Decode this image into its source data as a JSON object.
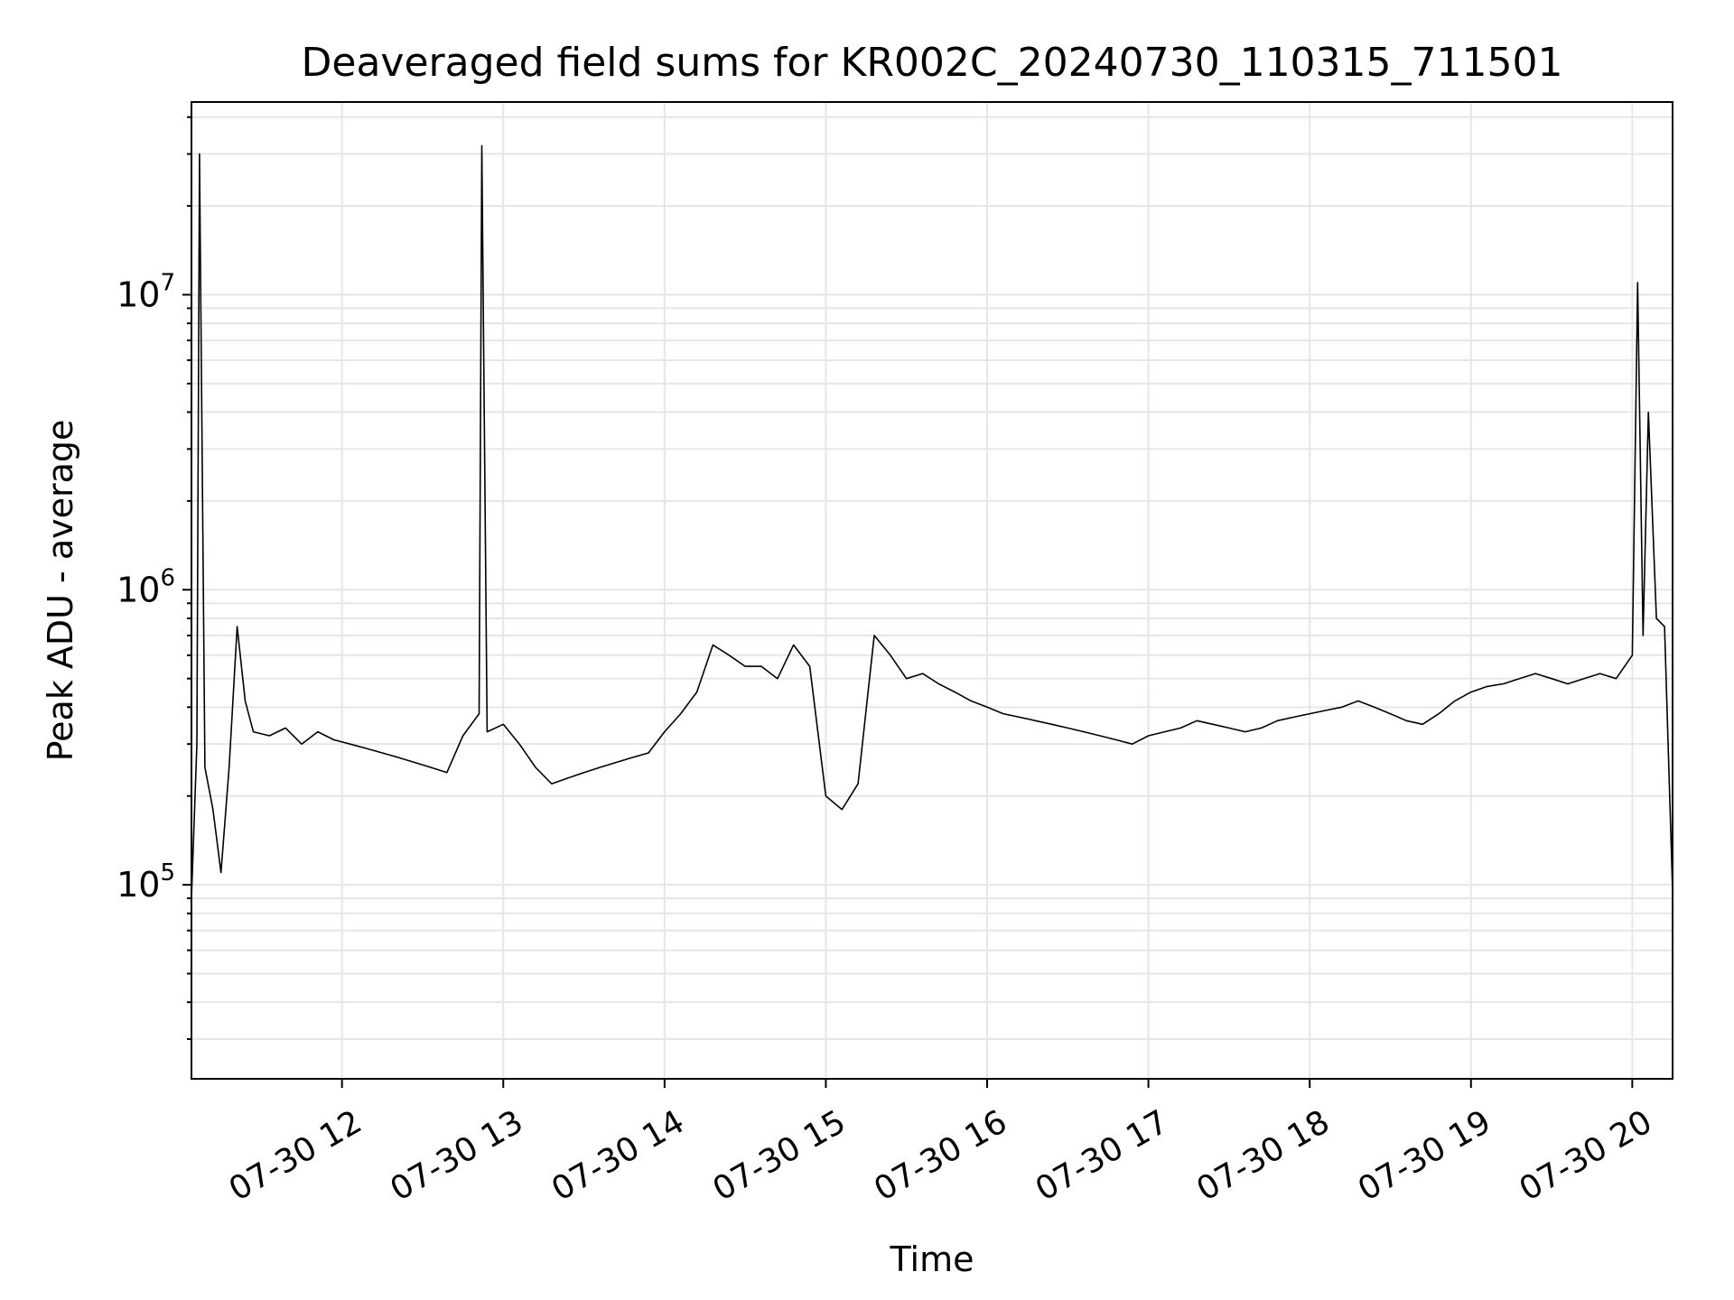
{
  "chart_data": {
    "type": "line",
    "title": "Deaveraged field sums for KR002C_20240730_110315_711501",
    "xlabel": "Time",
    "ylabel": "Peak ADU - average",
    "yscale": "log",
    "grid": true,
    "colors": {
      "line": "#000000",
      "grid": "#e6e6e6"
    },
    "xlim": [
      "07-30 11:04",
      "07-30 20:15"
    ],
    "ylim": [
      22000,
      45000000
    ],
    "x_ticks": [
      {
        "value": "07-30 12:00",
        "label": "07-30 12"
      },
      {
        "value": "07-30 13:00",
        "label": "07-30 13"
      },
      {
        "value": "07-30 14:00",
        "label": "07-30 14"
      },
      {
        "value": "07-30 15:00",
        "label": "07-30 15"
      },
      {
        "value": "07-30 16:00",
        "label": "07-30 16"
      },
      {
        "value": "07-30 17:00",
        "label": "07-30 17"
      },
      {
        "value": "07-30 18:00",
        "label": "07-30 18"
      },
      {
        "value": "07-30 19:00",
        "label": "07-30 19"
      },
      {
        "value": "07-30 20:00",
        "label": "07-30 20"
      }
    ],
    "y_ticks": [
      {
        "value": 100000,
        "base": "10",
        "exp": "5"
      },
      {
        "value": 1000000,
        "base": "10",
        "exp": "6"
      },
      {
        "value": 10000000,
        "base": "10",
        "exp": "7"
      }
    ],
    "series": [
      {
        "points": [
          [
            "07-30 11:04",
            90000
          ],
          [
            "07-30 11:06",
            300000
          ],
          [
            "07-30 11:07",
            30000000
          ],
          [
            "07-30 11:09",
            250000
          ],
          [
            "07-30 11:12",
            180000
          ],
          [
            "07-30 11:15",
            110000
          ],
          [
            "07-30 11:18",
            250000
          ],
          [
            "07-30 11:21",
            750000
          ],
          [
            "07-30 11:24",
            420000
          ],
          [
            "07-30 11:27",
            330000
          ],
          [
            "07-30 11:33",
            320000
          ],
          [
            "07-30 11:39",
            340000
          ],
          [
            "07-30 11:45",
            300000
          ],
          [
            "07-30 11:51",
            330000
          ],
          [
            "07-30 11:57",
            310000
          ],
          [
            "07-30 12:03",
            300000
          ],
          [
            "07-30 12:09",
            290000
          ],
          [
            "07-30 12:15",
            280000
          ],
          [
            "07-30 12:21",
            270000
          ],
          [
            "07-30 12:27",
            260000
          ],
          [
            "07-30 12:33",
            250000
          ],
          [
            "07-30 12:39",
            240000
          ],
          [
            "07-30 12:45",
            320000
          ],
          [
            "07-30 12:51",
            380000
          ],
          [
            "07-30 12:52",
            32000000
          ],
          [
            "07-30 12:54",
            330000
          ],
          [
            "07-30 13:00",
            350000
          ],
          [
            "07-30 13:06",
            300000
          ],
          [
            "07-30 13:12",
            250000
          ],
          [
            "07-30 13:18",
            220000
          ],
          [
            "07-30 13:24",
            230000
          ],
          [
            "07-30 13:30",
            240000
          ],
          [
            "07-30 13:36",
            250000
          ],
          [
            "07-30 13:42",
            260000
          ],
          [
            "07-30 13:48",
            270000
          ],
          [
            "07-30 13:54",
            280000
          ],
          [
            "07-30 14:00",
            330000
          ],
          [
            "07-30 14:06",
            380000
          ],
          [
            "07-30 14:12",
            450000
          ],
          [
            "07-30 14:18",
            650000
          ],
          [
            "07-30 14:24",
            600000
          ],
          [
            "07-30 14:30",
            550000
          ],
          [
            "07-30 14:36",
            550000
          ],
          [
            "07-30 14:42",
            500000
          ],
          [
            "07-30 14:48",
            650000
          ],
          [
            "07-30 14:54",
            550000
          ],
          [
            "07-30 15:00",
            200000
          ],
          [
            "07-30 15:06",
            180000
          ],
          [
            "07-30 15:12",
            220000
          ],
          [
            "07-30 15:18",
            700000
          ],
          [
            "07-30 15:24",
            600000
          ],
          [
            "07-30 15:30",
            500000
          ],
          [
            "07-30 15:36",
            520000
          ],
          [
            "07-30 15:42",
            480000
          ],
          [
            "07-30 15:48",
            450000
          ],
          [
            "07-30 15:54",
            420000
          ],
          [
            "07-30 16:00",
            400000
          ],
          [
            "07-30 16:06",
            380000
          ],
          [
            "07-30 16:12",
            370000
          ],
          [
            "07-30 16:18",
            360000
          ],
          [
            "07-30 16:24",
            350000
          ],
          [
            "07-30 16:30",
            340000
          ],
          [
            "07-30 16:36",
            330000
          ],
          [
            "07-30 16:42",
            320000
          ],
          [
            "07-30 16:48",
            310000
          ],
          [
            "07-30 16:54",
            300000
          ],
          [
            "07-30 17:00",
            320000
          ],
          [
            "07-30 17:06",
            330000
          ],
          [
            "07-30 17:12",
            340000
          ],
          [
            "07-30 17:18",
            360000
          ],
          [
            "07-30 17:24",
            350000
          ],
          [
            "07-30 17:30",
            340000
          ],
          [
            "07-30 17:36",
            330000
          ],
          [
            "07-30 17:42",
            340000
          ],
          [
            "07-30 17:48",
            360000
          ],
          [
            "07-30 17:54",
            370000
          ],
          [
            "07-30 18:00",
            380000
          ],
          [
            "07-30 18:06",
            390000
          ],
          [
            "07-30 18:12",
            400000
          ],
          [
            "07-30 18:18",
            420000
          ],
          [
            "07-30 18:24",
            400000
          ],
          [
            "07-30 18:30",
            380000
          ],
          [
            "07-30 18:36",
            360000
          ],
          [
            "07-30 18:42",
            350000
          ],
          [
            "07-30 18:48",
            380000
          ],
          [
            "07-30 18:54",
            420000
          ],
          [
            "07-30 19:00",
            450000
          ],
          [
            "07-30 19:06",
            470000
          ],
          [
            "07-30 19:12",
            480000
          ],
          [
            "07-30 19:18",
            500000
          ],
          [
            "07-30 19:24",
            520000
          ],
          [
            "07-30 19:30",
            500000
          ],
          [
            "07-30 19:36",
            480000
          ],
          [
            "07-30 19:42",
            500000
          ],
          [
            "07-30 19:48",
            520000
          ],
          [
            "07-30 19:54",
            500000
          ],
          [
            "07-30 20:00",
            600000
          ],
          [
            "07-30 20:02",
            11000000
          ],
          [
            "07-30 20:04",
            700000
          ],
          [
            "07-30 20:06",
            4000000
          ],
          [
            "07-30 20:09",
            800000
          ],
          [
            "07-30 20:12",
            750000
          ],
          [
            "07-30 20:15",
            95000
          ]
        ]
      }
    ]
  }
}
